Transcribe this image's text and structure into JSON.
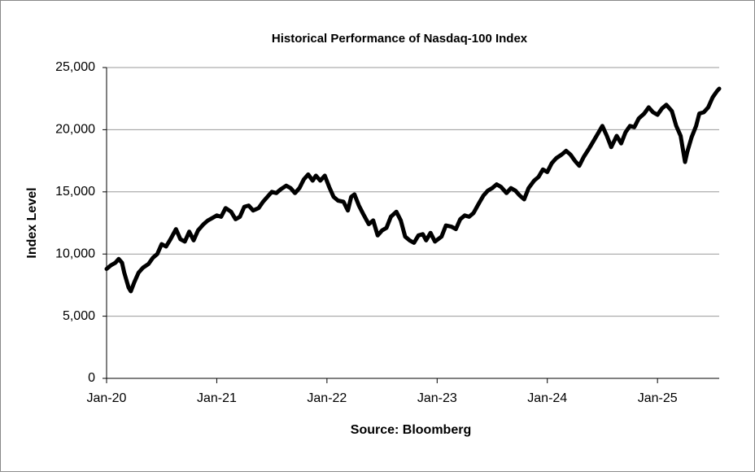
{
  "chart_data": {
    "type": "line",
    "title": "Historical Performance of Nasdaq-100 Index",
    "ylabel": "Index Level",
    "source": "Source: Bloomberg",
    "color": "#000000",
    "grid": true,
    "xlim": [
      2020,
      2025.56
    ],
    "xticks": [
      {
        "value": 2020,
        "label": "Jan-20"
      },
      {
        "value": 2021,
        "label": "Jan-21"
      },
      {
        "value": 2022,
        "label": "Jan-22"
      },
      {
        "value": 2023,
        "label": "Jan-23"
      },
      {
        "value": 2024,
        "label": "Jan-24"
      },
      {
        "value": 2025,
        "label": "Jan-25"
      }
    ],
    "ylim": [
      0,
      25000
    ],
    "yticks": [
      0,
      {
        "value": 5000,
        "label": "5,000"
      },
      {
        "value": 10000,
        "label": "10,000"
      },
      {
        "value": 15000,
        "label": "15,000"
      },
      {
        "value": 20000,
        "label": "20,000"
      },
      {
        "value": 25000,
        "label": "25,000"
      }
    ],
    "x": [
      2020.0,
      2020.04,
      2020.08,
      2020.11,
      2020.14,
      2020.16,
      2020.2,
      2020.22,
      2020.25,
      2020.29,
      2020.33,
      2020.38,
      2020.42,
      2020.46,
      2020.5,
      2020.54,
      2020.58,
      2020.63,
      2020.67,
      2020.71,
      2020.75,
      2020.79,
      2020.83,
      2020.88,
      2020.92,
      2020.96,
      2021.0,
      2021.04,
      2021.08,
      2021.13,
      2021.17,
      2021.21,
      2021.25,
      2021.29,
      2021.33,
      2021.38,
      2021.42,
      2021.46,
      2021.5,
      2021.54,
      2021.58,
      2021.63,
      2021.67,
      2021.71,
      2021.75,
      2021.79,
      2021.83,
      2021.87,
      2021.9,
      2021.94,
      2021.98,
      2022.02,
      2022.06,
      2022.1,
      2022.15,
      2022.19,
      2022.22,
      2022.25,
      2022.29,
      2022.33,
      2022.38,
      2022.42,
      2022.46,
      2022.5,
      2022.54,
      2022.58,
      2022.63,
      2022.67,
      2022.71,
      2022.75,
      2022.79,
      2022.83,
      2022.87,
      2022.9,
      2022.94,
      2022.98,
      2023.04,
      2023.08,
      2023.13,
      2023.17,
      2023.21,
      2023.25,
      2023.29,
      2023.33,
      2023.38,
      2023.42,
      2023.46,
      2023.5,
      2023.54,
      2023.58,
      2023.63,
      2023.67,
      2023.71,
      2023.75,
      2023.79,
      2023.83,
      2023.88,
      2023.92,
      2023.96,
      2024.0,
      2024.04,
      2024.08,
      2024.13,
      2024.17,
      2024.21,
      2024.25,
      2024.29,
      2024.33,
      2024.38,
      2024.42,
      2024.46,
      2024.5,
      2024.54,
      2024.58,
      2024.63,
      2024.67,
      2024.71,
      2024.75,
      2024.79,
      2024.83,
      2024.88,
      2024.92,
      2024.96,
      2025.0,
      2025.04,
      2025.08,
      2025.13,
      2025.17,
      2025.21,
      2025.25,
      2025.27,
      2025.31,
      2025.35,
      2025.38,
      2025.42,
      2025.46,
      2025.5,
      2025.54,
      2025.56
    ],
    "values": [
      8800,
      9100,
      9300,
      9600,
      9300,
      8500,
      7300,
      7000,
      7700,
      8500,
      8900,
      9200,
      9700,
      10000,
      10800,
      10600,
      11200,
      12000,
      11200,
      11000,
      11800,
      11100,
      11900,
      12400,
      12700,
      12900,
      13100,
      13000,
      13700,
      13400,
      12800,
      13000,
      13800,
      13900,
      13500,
      13700,
      14200,
      14600,
      15000,
      14900,
      15200,
      15500,
      15300,
      14900,
      15300,
      16000,
      16400,
      15900,
      16300,
      15900,
      16300,
      15400,
      14600,
      14300,
      14200,
      13500,
      14600,
      14800,
      13900,
      13200,
      12400,
      12700,
      11500,
      11900,
      12100,
      13000,
      13400,
      12700,
      11400,
      11100,
      10900,
      11500,
      11600,
      11100,
      11700,
      11000,
      11400,
      12300,
      12200,
      12000,
      12800,
      13100,
      13000,
      13300,
      14100,
      14700,
      15100,
      15300,
      15600,
      15400,
      14900,
      15300,
      15100,
      14700,
      14400,
      15300,
      15900,
      16200,
      16800,
      16600,
      17300,
      17700,
      18000,
      18300,
      18000,
      17500,
      17100,
      17800,
      18500,
      19100,
      19700,
      20300,
      19500,
      18600,
      19500,
      18900,
      19800,
      20300,
      20200,
      20900,
      21300,
      21800,
      21400,
      21200,
      21700,
      22000,
      21500,
      20300,
      19500,
      17400,
      18200,
      19400,
      20300,
      21300,
      21400,
      21800,
      22600,
      23100,
      23300
    ]
  }
}
